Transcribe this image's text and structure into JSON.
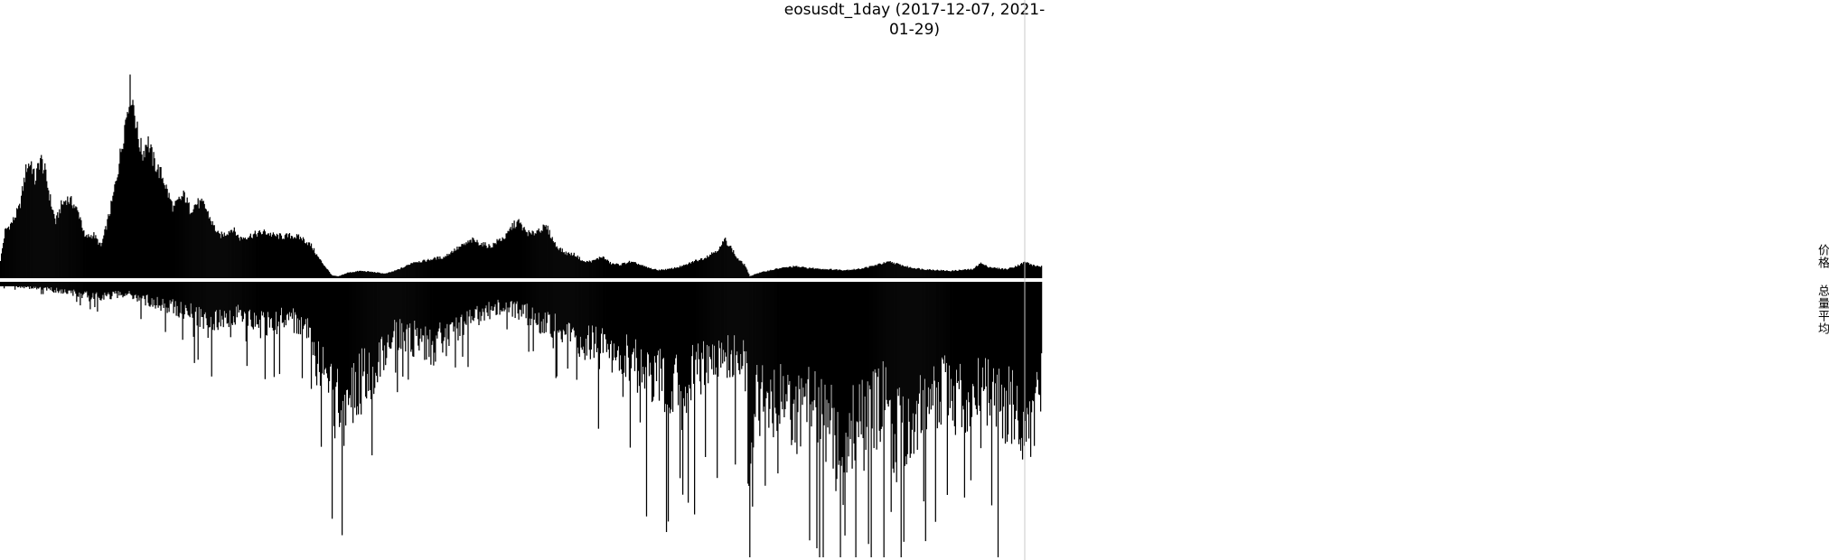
{
  "title": "eosusdt_1day (2017-12-07, 2021-01-29)",
  "legend": {
    "price_label": "价格",
    "volume_label": "总量平均"
  },
  "chart_data": {
    "type": "bar",
    "title": "eosusdt_1day (2017-12-07, 2021-01-29)",
    "x_range": [
      "2017-12-07",
      "2021-01-29"
    ],
    "cursor_date": "2021-01-11",
    "grid": false,
    "legend_placement": "right",
    "series": [
      {
        "name": "价格",
        "panel": "top",
        "points": [
          [
            "2017-12-07",
            2.0
          ],
          [
            "2017-12-12",
            5.2
          ],
          [
            "2017-12-20",
            6.2
          ],
          [
            "2017-12-28",
            7.8
          ],
          [
            "2018-01-05",
            12.4
          ],
          [
            "2018-01-10",
            12.8
          ],
          [
            "2018-01-14",
            10.8
          ],
          [
            "2018-01-20",
            13.3
          ],
          [
            "2018-01-25",
            11.8
          ],
          [
            "2018-02-01",
            8.2
          ],
          [
            "2018-02-06",
            6.2
          ],
          [
            "2018-02-12",
            8.0
          ],
          [
            "2018-02-18",
            8.8
          ],
          [
            "2018-02-25",
            8.3
          ],
          [
            "2018-03-05",
            6.8
          ],
          [
            "2018-03-10",
            4.5
          ],
          [
            "2018-03-20",
            4.8
          ],
          [
            "2018-03-28",
            3.5
          ],
          [
            "2018-04-03",
            5.8
          ],
          [
            "2018-04-10",
            8.8
          ],
          [
            "2018-04-18",
            13.5
          ],
          [
            "2018-04-24",
            17.5
          ],
          [
            "2018-04-29",
            21.0
          ],
          [
            "2018-05-03",
            19.2
          ],
          [
            "2018-05-08",
            15.5
          ],
          [
            "2018-05-13",
            13.7
          ],
          [
            "2018-05-18",
            15.4
          ],
          [
            "2018-05-24",
            13.2
          ],
          [
            "2018-05-30",
            12.0
          ],
          [
            "2018-06-05",
            11.0
          ],
          [
            "2018-06-10",
            9.3
          ],
          [
            "2018-06-16",
            7.7
          ],
          [
            "2018-06-22",
            8.6
          ],
          [
            "2018-06-28",
            9.2
          ],
          [
            "2018-07-04",
            7.6
          ],
          [
            "2018-07-12",
            8.3
          ],
          [
            "2018-07-20",
            8.1
          ],
          [
            "2018-07-28",
            6.2
          ],
          [
            "2018-08-05",
            4.7
          ],
          [
            "2018-08-12",
            4.9
          ],
          [
            "2018-08-20",
            5.5
          ],
          [
            "2018-08-28",
            4.4
          ],
          [
            "2018-09-05",
            4.6
          ],
          [
            "2018-09-15",
            4.9
          ],
          [
            "2018-09-25",
            5.1
          ],
          [
            "2018-10-05",
            4.7
          ],
          [
            "2018-10-15",
            4.6
          ],
          [
            "2018-10-25",
            4.7
          ],
          [
            "2018-11-05",
            4.4
          ],
          [
            "2018-11-15",
            3.6
          ],
          [
            "2018-11-22",
            2.4
          ],
          [
            "2018-11-28",
            1.6
          ],
          [
            "2018-12-08",
            0.3
          ],
          [
            "2018-12-15",
            0.2
          ],
          [
            "2018-12-25",
            0.6
          ],
          [
            "2019-01-08",
            0.8
          ],
          [
            "2019-01-20",
            0.7
          ],
          [
            "2019-02-05",
            0.5
          ],
          [
            "2019-02-15",
            0.8
          ],
          [
            "2019-02-25",
            1.2
          ],
          [
            "2019-03-08",
            1.8
          ],
          [
            "2019-03-20",
            1.9
          ],
          [
            "2019-04-01",
            2.2
          ],
          [
            "2019-04-10",
            2.3
          ],
          [
            "2019-04-20",
            3.0
          ],
          [
            "2019-05-01",
            3.6
          ],
          [
            "2019-05-12",
            4.2
          ],
          [
            "2019-05-22",
            3.8
          ],
          [
            "2019-06-01",
            3.5
          ],
          [
            "2019-06-10",
            4.2
          ],
          [
            "2019-06-18",
            4.6
          ],
          [
            "2019-06-25",
            5.8
          ],
          [
            "2019-07-02",
            6.2
          ],
          [
            "2019-07-09",
            5.2
          ],
          [
            "2019-07-16",
            4.8
          ],
          [
            "2019-07-24",
            5.4
          ],
          [
            "2019-08-02",
            5.6
          ],
          [
            "2019-08-12",
            3.6
          ],
          [
            "2019-08-22",
            2.8
          ],
          [
            "2019-09-02",
            2.6
          ],
          [
            "2019-09-12",
            1.8
          ],
          [
            "2019-09-22",
            1.9
          ],
          [
            "2019-10-02",
            2.4
          ],
          [
            "2019-10-12",
            1.6
          ],
          [
            "2019-10-22",
            1.5
          ],
          [
            "2019-11-01",
            1.8
          ],
          [
            "2019-11-10",
            1.6
          ],
          [
            "2019-11-20",
            1.2
          ],
          [
            "2019-12-02",
            0.9
          ],
          [
            "2019-12-15",
            1.0
          ],
          [
            "2020-01-01",
            1.4
          ],
          [
            "2020-01-12",
            1.9
          ],
          [
            "2020-01-22",
            2.2
          ],
          [
            "2020-02-01",
            2.8
          ],
          [
            "2020-02-10",
            3.4
          ],
          [
            "2020-02-14",
            4.3
          ],
          [
            "2020-02-20",
            3.6
          ],
          [
            "2020-02-28",
            2.2
          ],
          [
            "2020-03-08",
            1.4
          ],
          [
            "2020-03-13",
            0.2
          ],
          [
            "2020-03-20",
            0.5
          ],
          [
            "2020-04-01",
            0.8
          ],
          [
            "2020-04-15",
            1.1
          ],
          [
            "2020-05-01",
            1.3
          ],
          [
            "2020-05-20",
            1.1
          ],
          [
            "2020-06-05",
            1.0
          ],
          [
            "2020-06-25",
            0.9
          ],
          [
            "2020-07-10",
            1.0
          ],
          [
            "2020-07-25",
            1.3
          ],
          [
            "2020-08-05",
            1.6
          ],
          [
            "2020-08-15",
            1.8
          ],
          [
            "2020-08-25",
            1.5
          ],
          [
            "2020-09-05",
            1.2
          ],
          [
            "2020-09-20",
            1.0
          ],
          [
            "2020-10-05",
            0.9
          ],
          [
            "2020-10-20",
            0.8
          ],
          [
            "2020-11-01",
            0.9
          ],
          [
            "2020-11-15",
            1.0
          ],
          [
            "2020-11-22",
            1.7
          ],
          [
            "2020-11-30",
            1.3
          ],
          [
            "2020-12-10",
            1.1
          ],
          [
            "2020-12-22",
            1.0
          ],
          [
            "2021-01-05",
            1.5
          ],
          [
            "2021-01-11",
            1.8
          ],
          [
            "2021-01-20",
            1.4
          ],
          [
            "2021-01-29",
            1.3
          ]
        ]
      },
      {
        "name": "总量平均",
        "panel": "bottom",
        "points": [
          [
            "2017-12-07",
            0.3
          ],
          [
            "2018-01-10",
            0.6
          ],
          [
            "2018-02-12",
            1.0
          ],
          [
            "2018-03-20",
            1.6
          ],
          [
            "2018-04-25",
            1.3
          ],
          [
            "2018-05-25",
            2.2
          ],
          [
            "2018-06-20",
            2.8
          ],
          [
            "2018-07-15",
            3.8
          ],
          [
            "2018-08-10",
            4.4
          ],
          [
            "2018-08-25",
            3.4
          ],
          [
            "2018-09-20",
            4.6
          ],
          [
            "2018-10-20",
            3.6
          ],
          [
            "2018-11-10",
            5.2
          ],
          [
            "2018-11-20",
            8.6
          ],
          [
            "2018-12-08",
            12.5
          ],
          [
            "2018-12-20",
            13.8
          ],
          [
            "2019-01-05",
            11.2
          ],
          [
            "2019-01-25",
            9.2
          ],
          [
            "2019-02-12",
            5.6
          ],
          [
            "2019-03-05",
            6.0
          ],
          [
            "2019-03-25",
            7.2
          ],
          [
            "2019-04-15",
            5.8
          ],
          [
            "2019-05-05",
            4.2
          ],
          [
            "2019-05-25",
            3.3
          ],
          [
            "2019-06-15",
            2.6
          ],
          [
            "2019-07-02",
            3.1
          ],
          [
            "2019-07-18",
            3.8
          ],
          [
            "2019-08-05",
            4.7
          ],
          [
            "2019-08-25",
            5.6
          ],
          [
            "2019-09-15",
            6.4
          ],
          [
            "2019-10-05",
            7.6
          ],
          [
            "2019-10-25",
            8.1
          ],
          [
            "2019-11-15",
            9.4
          ],
          [
            "2019-12-05",
            10.6
          ],
          [
            "2019-12-25",
            11.6
          ],
          [
            "2020-01-15",
            9.6
          ],
          [
            "2020-02-05",
            8.4
          ],
          [
            "2020-02-25",
            7.6
          ],
          [
            "2020-03-10",
            9.2
          ],
          [
            "2020-03-12",
            24.0
          ],
          [
            "2020-03-20",
            13.2
          ],
          [
            "2020-04-10",
            12.6
          ],
          [
            "2020-05-01",
            14.6
          ],
          [
            "2020-05-15",
            12.2
          ],
          [
            "2020-06-01",
            13.6
          ],
          [
            "2020-06-20",
            19.2
          ],
          [
            "2020-07-10",
            13.8
          ],
          [
            "2020-07-25",
            14.4
          ],
          [
            "2020-08-10",
            12.4
          ],
          [
            "2020-08-20",
            17.6
          ],
          [
            "2020-09-05",
            14.4
          ],
          [
            "2020-09-25",
            12.6
          ],
          [
            "2020-10-15",
            11.8
          ],
          [
            "2020-11-05",
            13.4
          ],
          [
            "2020-11-25",
            11.2
          ],
          [
            "2020-12-15",
            12.8
          ],
          [
            "2021-01-05",
            14.2
          ],
          [
            "2021-01-15",
            18.8
          ],
          [
            "2021-01-29",
            11.2
          ]
        ]
      }
    ]
  }
}
